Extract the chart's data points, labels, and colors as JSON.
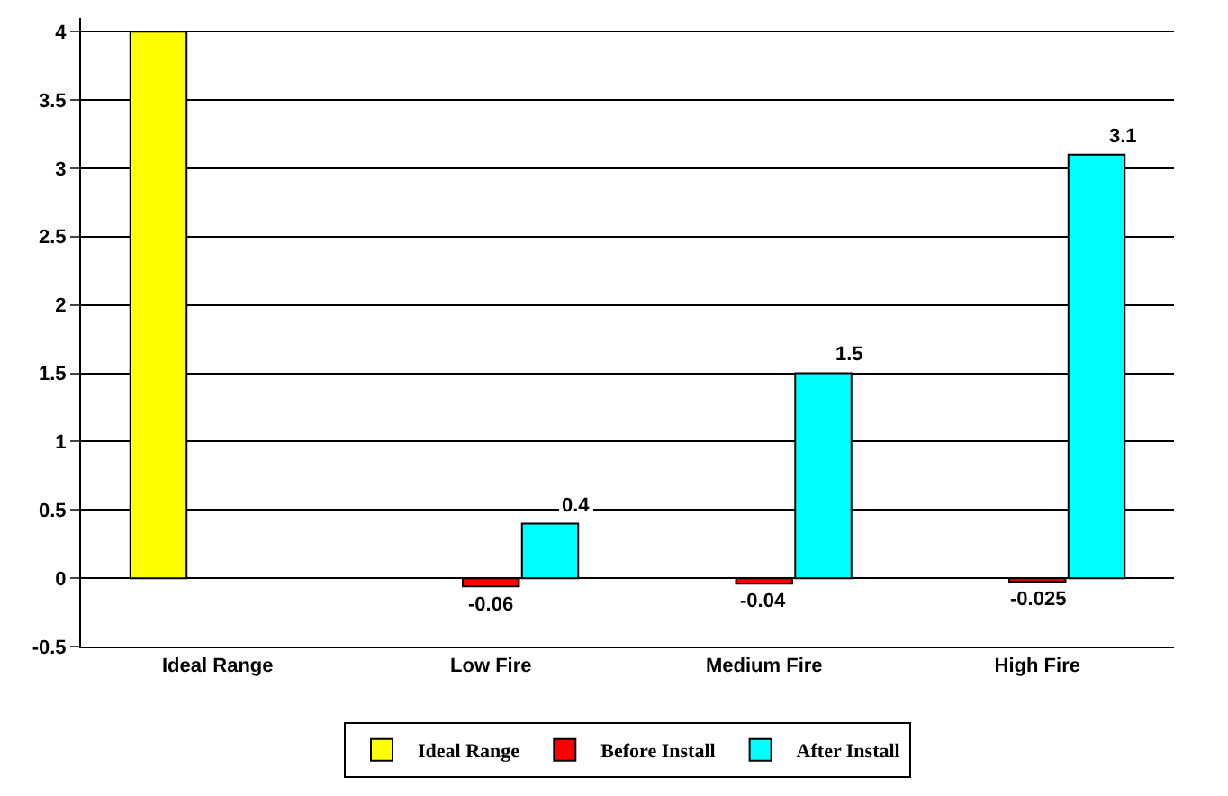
{
  "chart_data": {
    "type": "bar",
    "categories": [
      "Ideal Range",
      "Low Fire",
      "Medium Fire",
      "High Fire"
    ],
    "series": [
      {
        "name": "Ideal Range",
        "color": "#ffff00",
        "values": [
          4,
          null,
          null,
          null
        ],
        "value_labels": [
          null,
          null,
          null,
          null
        ]
      },
      {
        "name": "Before Install",
        "color": "#ff0000",
        "values": [
          null,
          -0.06,
          -0.04,
          -0.025
        ],
        "value_labels": [
          null,
          "-0.06",
          "-0.04",
          "-0.025"
        ]
      },
      {
        "name": "After Install",
        "color": "#00ffff",
        "values": [
          null,
          0.4,
          1.5,
          3.1
        ],
        "value_labels": [
          null,
          "0.4",
          "1.5",
          "3.1"
        ]
      }
    ],
    "ylim": [
      -0.5,
      4.1
    ],
    "yticks": [
      -0.5,
      0,
      0.5,
      1,
      1.5,
      2,
      2.5,
      3,
      3.5,
      4
    ],
    "grid": "y",
    "legend": "bottom"
  }
}
